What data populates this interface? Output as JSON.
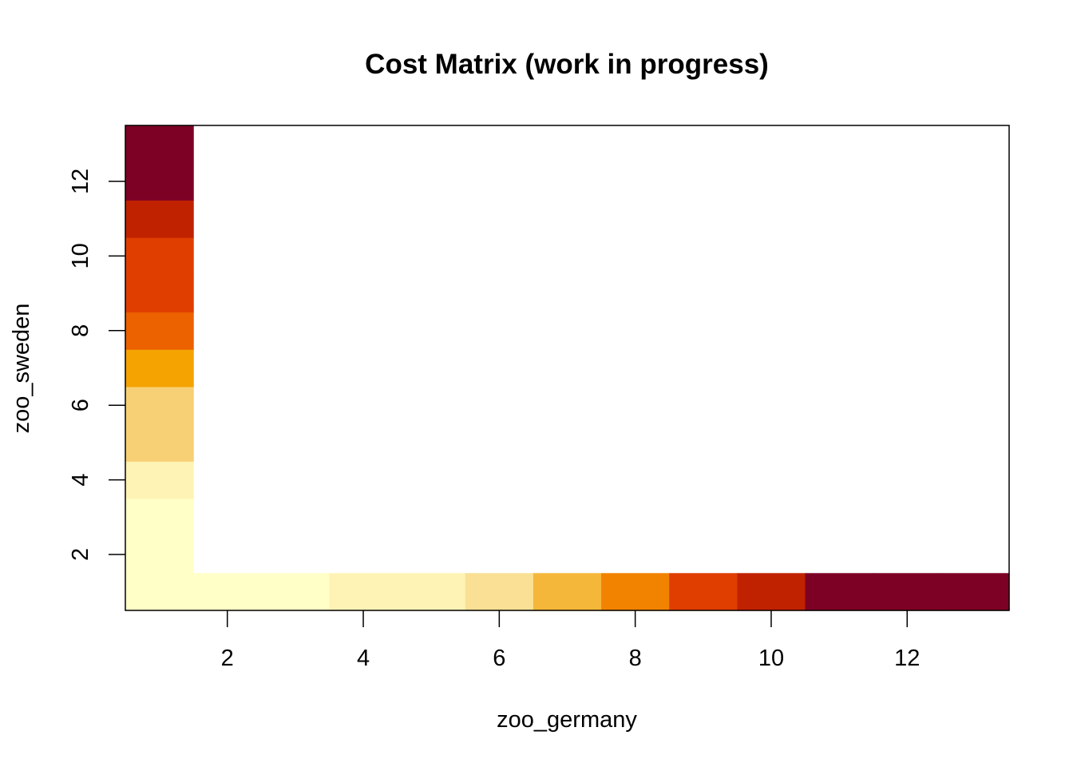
{
  "chart_data": {
    "type": "heatmap",
    "title": "Cost Matrix (work in progress)",
    "xlabel": "zoo_germany",
    "ylabel": "zoo_sweden",
    "xlim": [
      0.5,
      13.5
    ],
    "ylim": [
      0.5,
      13.5
    ],
    "x_ticks": [
      2,
      4,
      6,
      8,
      10,
      12
    ],
    "y_ticks": [
      2,
      4,
      6,
      8,
      10,
      12
    ],
    "grid": false,
    "palette": [
      "#FFFFC8",
      "#FEF3B4",
      "#F9E094",
      "#F7D075",
      "#F5B73A",
      "#F4A300",
      "#F28300",
      "#EC6100",
      "#E03E00",
      "#C02200",
      "#7D0025"
    ],
    "cells": [
      {
        "x": 1,
        "y": 1,
        "color": "#FFFFC8"
      },
      {
        "x": 2,
        "y": 1,
        "color": "#FFFFC8"
      },
      {
        "x": 3,
        "y": 1,
        "color": "#FFFFC8"
      },
      {
        "x": 4,
        "y": 1,
        "color": "#FEF3B4"
      },
      {
        "x": 5,
        "y": 1,
        "color": "#FEF3B4"
      },
      {
        "x": 6,
        "y": 1,
        "color": "#F9E094"
      },
      {
        "x": 7,
        "y": 1,
        "color": "#F5B73A"
      },
      {
        "x": 8,
        "y": 1,
        "color": "#F28300"
      },
      {
        "x": 9,
        "y": 1,
        "color": "#E03E00"
      },
      {
        "x": 10,
        "y": 1,
        "color": "#C02200"
      },
      {
        "x": 11,
        "y": 1,
        "color": "#7D0025"
      },
      {
        "x": 12,
        "y": 1,
        "color": "#7D0025"
      },
      {
        "x": 13,
        "y": 1,
        "color": "#7D0025"
      },
      {
        "x": 1,
        "y": 2,
        "color": "#FFFFC8"
      },
      {
        "x": 1,
        "y": 3,
        "color": "#FFFFC8"
      },
      {
        "x": 1,
        "y": 4,
        "color": "#FEF3B4"
      },
      {
        "x": 1,
        "y": 5,
        "color": "#F7D075"
      },
      {
        "x": 1,
        "y": 6,
        "color": "#F7D075"
      },
      {
        "x": 1,
        "y": 7,
        "color": "#F4A300"
      },
      {
        "x": 1,
        "y": 8,
        "color": "#EC6100"
      },
      {
        "x": 1,
        "y": 9,
        "color": "#E03E00"
      },
      {
        "x": 1,
        "y": 10,
        "color": "#E03E00"
      },
      {
        "x": 1,
        "y": 11,
        "color": "#C02200"
      },
      {
        "x": 1,
        "y": 12,
        "color": "#7D0025"
      },
      {
        "x": 1,
        "y": 13,
        "color": "#7D0025"
      }
    ]
  }
}
